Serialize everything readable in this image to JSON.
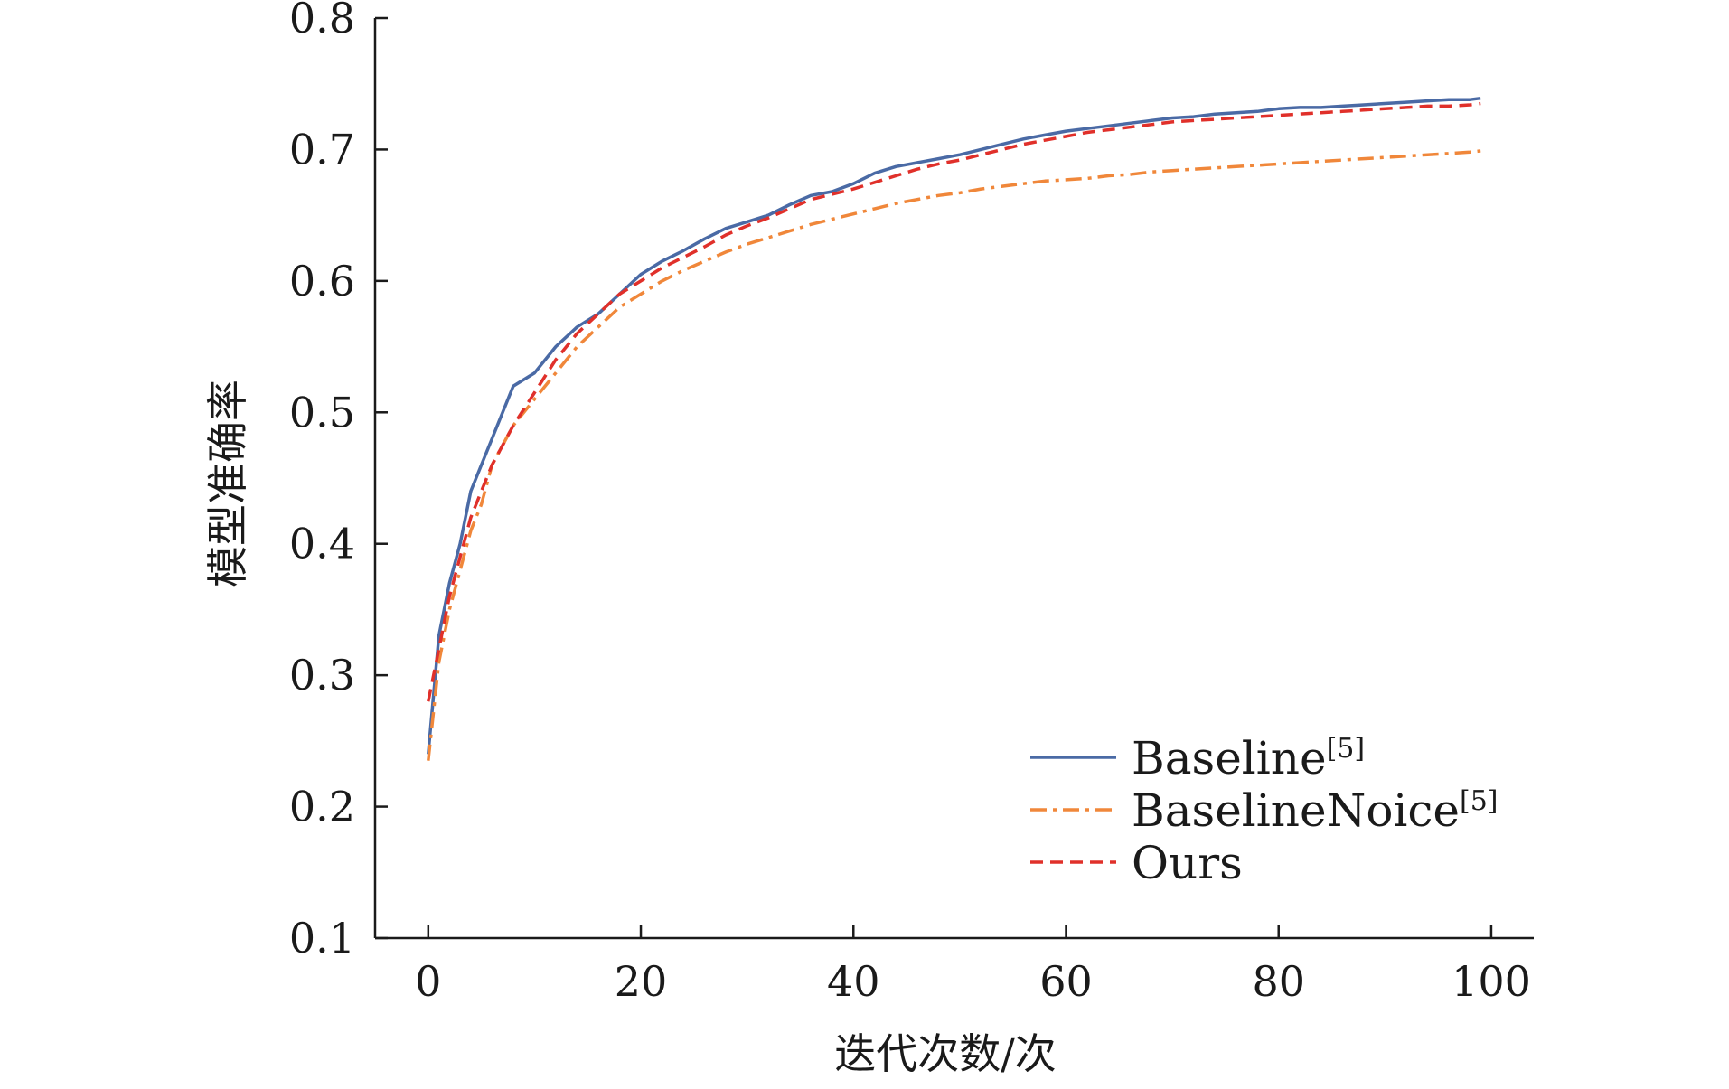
{
  "chart_data": {
    "type": "line",
    "xlabel": "迭代次数/次",
    "ylabel": "模型准确率",
    "xlim": [
      -5,
      104
    ],
    "ylim": [
      0.1,
      0.8
    ],
    "xticks": [
      0,
      20,
      40,
      60,
      80,
      100
    ],
    "xtick_labels": [
      "0",
      "20",
      "40",
      "60",
      "80",
      "100"
    ],
    "yticks": [
      0.1,
      0.2,
      0.3,
      0.4,
      0.5,
      0.6,
      0.7,
      0.8
    ],
    "ytick_labels": [
      "0.1",
      "0.2",
      "0.3",
      "0.4",
      "0.5",
      "0.6",
      "0.7",
      "0.8"
    ],
    "grid": false,
    "legend_position": "bottom-right",
    "x": [
      0,
      1,
      2,
      3,
      4,
      5,
      6,
      8,
      10,
      12,
      14,
      16,
      18,
      20,
      22,
      24,
      26,
      28,
      30,
      32,
      34,
      36,
      38,
      40,
      42,
      44,
      46,
      48,
      50,
      52,
      54,
      56,
      58,
      60,
      62,
      64,
      66,
      68,
      70,
      72,
      74,
      76,
      78,
      80,
      82,
      84,
      86,
      88,
      90,
      92,
      94,
      96,
      98,
      99
    ],
    "series": [
      {
        "name": "Baseline",
        "label_sup": "[5]",
        "color": "#4a6aa5",
        "dash": "solid",
        "values": [
          0.24,
          0.33,
          0.37,
          0.4,
          0.44,
          0.46,
          0.48,
          0.52,
          0.53,
          0.55,
          0.565,
          0.575,
          0.59,
          0.605,
          0.615,
          0.623,
          0.632,
          0.64,
          0.645,
          0.65,
          0.658,
          0.665,
          0.668,
          0.674,
          0.682,
          0.687,
          0.69,
          0.693,
          0.696,
          0.7,
          0.704,
          0.708,
          0.711,
          0.714,
          0.716,
          0.718,
          0.72,
          0.722,
          0.724,
          0.725,
          0.727,
          0.728,
          0.729,
          0.731,
          0.732,
          0.732,
          0.733,
          0.734,
          0.735,
          0.736,
          0.737,
          0.738,
          0.738,
          0.739
        ]
      },
      {
        "name": "BaselineNoice",
        "label_sup": "[5]",
        "color": "#f0873a",
        "dash": "dashdot",
        "values": [
          0.235,
          0.31,
          0.35,
          0.38,
          0.41,
          0.43,
          0.46,
          0.49,
          0.51,
          0.53,
          0.55,
          0.565,
          0.58,
          0.59,
          0.6,
          0.608,
          0.615,
          0.622,
          0.628,
          0.633,
          0.638,
          0.643,
          0.647,
          0.651,
          0.655,
          0.659,
          0.662,
          0.665,
          0.667,
          0.67,
          0.672,
          0.674,
          0.676,
          0.677,
          0.678,
          0.68,
          0.681,
          0.683,
          0.684,
          0.685,
          0.686,
          0.687,
          0.688,
          0.689,
          0.69,
          0.691,
          0.692,
          0.693,
          0.694,
          0.695,
          0.696,
          0.697,
          0.698,
          0.699
        ]
      },
      {
        "name": "Ours",
        "label_sup": "",
        "color": "#e0302a",
        "dash": "dashed",
        "values": [
          0.28,
          0.32,
          0.36,
          0.39,
          0.42,
          0.44,
          0.46,
          0.49,
          0.515,
          0.54,
          0.56,
          0.575,
          0.59,
          0.6,
          0.61,
          0.618,
          0.626,
          0.635,
          0.642,
          0.648,
          0.655,
          0.662,
          0.666,
          0.67,
          0.675,
          0.68,
          0.685,
          0.689,
          0.692,
          0.696,
          0.7,
          0.704,
          0.707,
          0.71,
          0.713,
          0.715,
          0.717,
          0.719,
          0.721,
          0.722,
          0.723,
          0.724,
          0.725,
          0.726,
          0.727,
          0.728,
          0.729,
          0.73,
          0.731,
          0.732,
          0.733,
          0.733,
          0.734,
          0.735
        ]
      }
    ]
  }
}
